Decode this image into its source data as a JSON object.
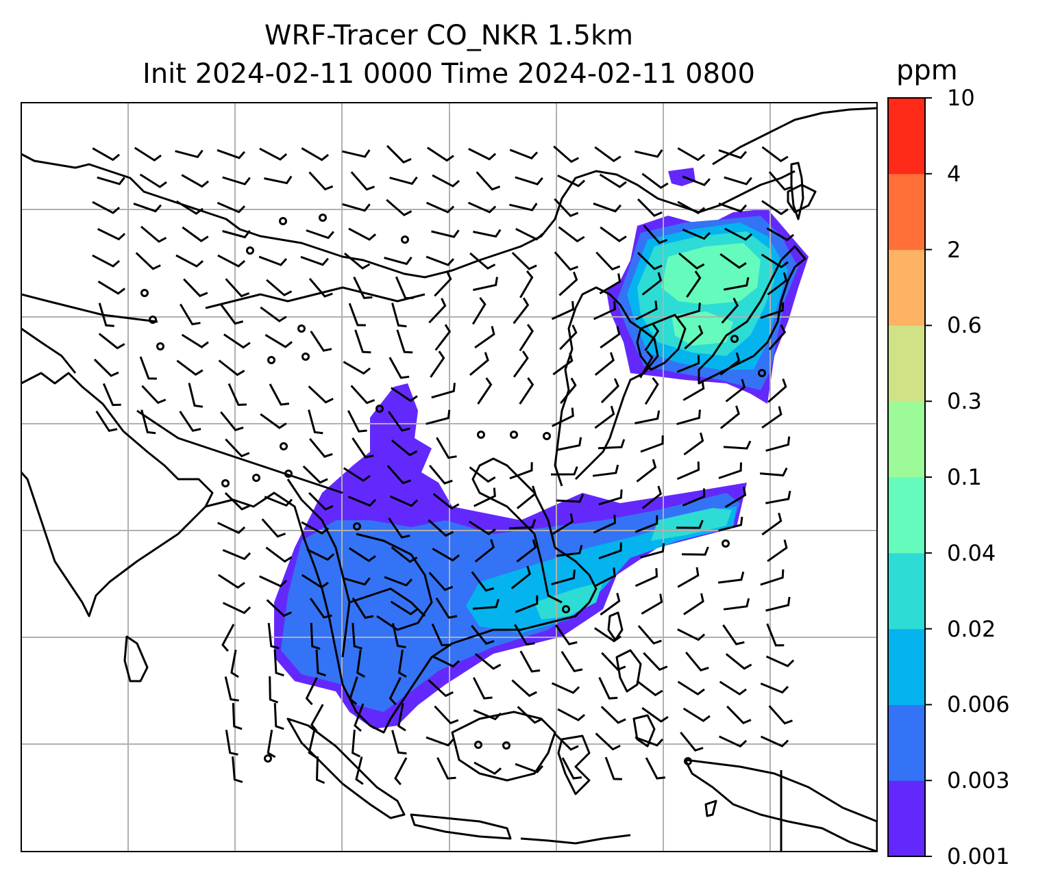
{
  "title_line1": "WRF-Tracer CO_NKR 1.5km",
  "title_line2": "Init 2024-02-11 0000 Time 2024-02-11 0800",
  "colorbar": {
    "unit": "ppm",
    "levels": [
      "0.001",
      "0.003",
      "0.006",
      "0.02",
      "0.04",
      "0.1",
      "0.3",
      "0.6",
      "2",
      "4",
      "10"
    ],
    "colors": [
      "#6329fc",
      "#3473f5",
      "#05b4ef",
      "#2ddcd4",
      "#65fbbc",
      "#9cfb98",
      "#cfe386",
      "#feb264",
      "#fe7038",
      "#ff2a17"
    ]
  },
  "map": {
    "features": [
      "coastlines",
      "country-borders",
      "lat-lon-gridlines",
      "wind-barbs",
      "tracer-concentration-field"
    ],
    "gridline_color": "#b0b0b0"
  }
}
